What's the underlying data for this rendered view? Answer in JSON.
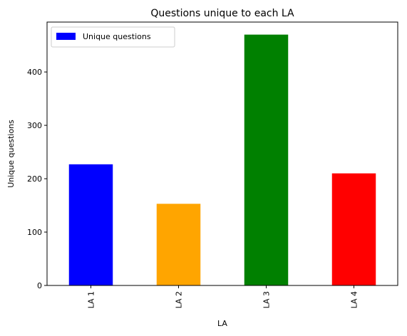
{
  "chart_data": {
    "type": "bar",
    "title": "Questions unique to each LA",
    "xlabel": "LA",
    "ylabel": "Unique questions",
    "categories": [
      "LA 1",
      "LA 2",
      "LA 3",
      "LA 4"
    ],
    "series": [
      {
        "name": "Unique questions",
        "values": [
          227,
          153,
          470,
          210
        ],
        "colors": [
          "#0000ff",
          "#ffa500",
          "#008000",
          "#ff0000"
        ]
      }
    ],
    "yticks": [
      "0",
      "100",
      "200",
      "300",
      "400"
    ],
    "ylim": [
      0,
      493.5
    ],
    "legend_position": "top-left",
    "grid": false
  }
}
